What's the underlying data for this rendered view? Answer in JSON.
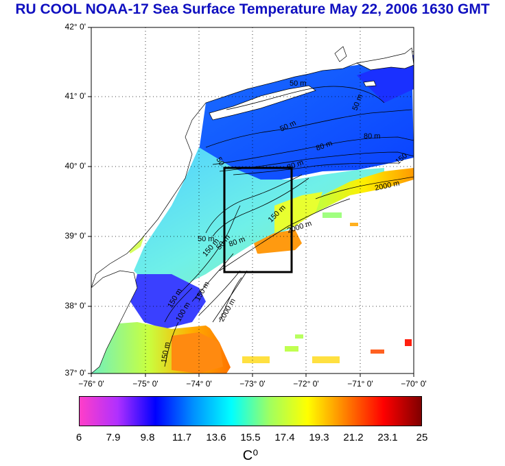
{
  "title": "RU COOL  NOAA-17 Sea Surface Temperature May 22, 2006 1630 GMT",
  "lat_labels": [
    "42° 0'",
    "41° 0'",
    "40° 0'",
    "39° 0'",
    "38° 0'",
    "37° 0'"
  ],
  "lon_labels": [
    "−76° 0'",
    "−75° 0'",
    "−74° 0'",
    "−73° 0'",
    "−72° 0'",
    "−71° 0'",
    "−70° 0'"
  ],
  "contour_labels": [
    "50 m",
    "50 m",
    "80 m",
    "80 m",
    "50 m",
    "50",
    "80 m",
    "150",
    "2000 m",
    "150 m",
    "2000 m",
    "50 m",
    "150 m",
    "50 m",
    "80 m",
    "150 m",
    "150 m",
    "100 m",
    "2000 m",
    "150 m"
  ],
  "colorbar": {
    "min": 6,
    "max": 25,
    "ticks": [
      "6",
      "7.9",
      "9.8",
      "11.7",
      "13.6",
      "15.5",
      "17.4",
      "19.3",
      "21.2",
      "23.1",
      "25"
    ],
    "unit": "C⁰",
    "colors": [
      "#ff3ec8",
      "#b030ff",
      "#0000ff",
      "#0090ff",
      "#00ffff",
      "#a0ff60",
      "#ffff00",
      "#ff8000",
      "#ff0000",
      "#800000"
    ]
  },
  "study_box": {
    "lon_min": -73.5,
    "lon_max": -72.3,
    "lat_min": 38.5,
    "lat_max": 40.0
  }
}
